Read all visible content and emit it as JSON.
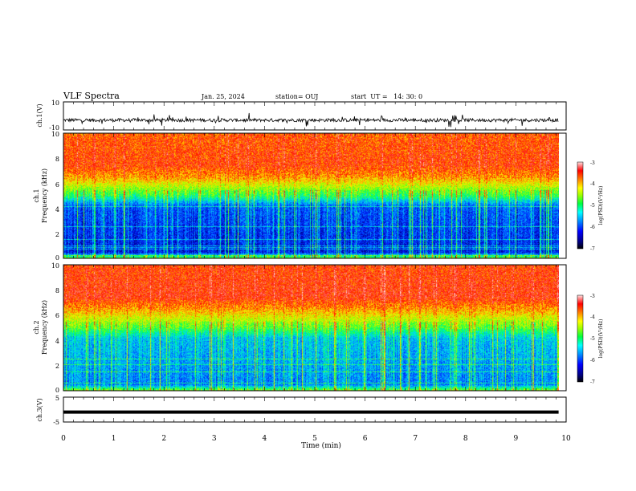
{
  "header": {
    "title": "VLF Spectra",
    "date": "Jan. 25, 2024",
    "station": "station= OUJ",
    "start_ut": "start  UT =   14: 30: 0"
  },
  "chart_data": [
    {
      "type": "line",
      "panel": "ch1-waveform",
      "ylabel": "ch.1(V)",
      "ylim": [
        -10,
        10
      ],
      "ytick_labels": [
        "10",
        "-10"
      ],
      "xlim": [
        0,
        10
      ],
      "series": [
        {
          "values_description_level": -3,
          "noise_amplitude": 4
        }
      ]
    },
    {
      "type": "heatmap",
      "panel": "ch1-spectrogram",
      "ylabel_line1": "ch.1",
      "ylabel_line2": "Frequency (kHz)",
      "ylim": [
        0,
        10
      ],
      "yticks": [
        0,
        2,
        4,
        6,
        8,
        10
      ],
      "ytick_labels": [
        "0",
        "2",
        "4",
        "6",
        "8",
        "10"
      ],
      "xlim": [
        0,
        10
      ],
      "colorbar": {
        "label": "log(PSD)(V²/Hz)",
        "range": [
          -7,
          -3
        ],
        "ticks": [
          "-3",
          "-4",
          "-5",
          "-6",
          "-7"
        ]
      },
      "colormap": [
        "#000080",
        "#0000ff",
        "#0080ff",
        "#00c0ff",
        "#00ffc0",
        "#00ff40",
        "#80ff00",
        "#ffff00",
        "#ff8000",
        "#ff0000",
        "#ff8080",
        "#ffffff"
      ],
      "data_end_min": 9.85,
      "profile_kHz": [
        0,
        0.5,
        4.2,
        5.0,
        6.5,
        7.5,
        10
      ],
      "profile_log_psd": [
        -4.5,
        -6.3,
        -6.0,
        -5.0,
        -4.0,
        -3.7,
        -3.8
      ]
    },
    {
      "type": "heatmap",
      "panel": "ch2-spectrogram",
      "ylabel_line1": "ch.2",
      "ylabel_line2": "Frequency (kHz)",
      "ylim": [
        0,
        10
      ],
      "yticks": [
        0,
        2,
        4,
        6,
        8,
        10
      ],
      "ytick_labels": [
        "0",
        "2",
        "4",
        "6",
        "8",
        "10"
      ],
      "xlim": [
        0,
        10
      ],
      "colorbar": {
        "label": "log(PSD)(V²/Hz)",
        "range": [
          -7,
          -3
        ],
        "ticks": [
          "-3",
          "-4",
          "-5",
          "-6",
          "-7"
        ]
      },
      "data_end_min": 9.85,
      "profile_kHz": [
        0,
        0.5,
        4.2,
        5.0,
        6.5,
        7.5,
        10
      ],
      "profile_log_psd": [
        -4.5,
        -5.8,
        -5.5,
        -4.8,
        -4.0,
        -3.6,
        -3.7
      ]
    },
    {
      "type": "line",
      "panel": "ch3-waveform",
      "ylabel": "ch.3(V)",
      "ylim": [
        -5,
        5
      ],
      "ytick_labels": [
        "5",
        "-5"
      ],
      "xlim": [
        0,
        10
      ],
      "series": [
        {
          "constant_value": -1
        }
      ]
    }
  ],
  "xaxis": {
    "label": "Time (min)",
    "ticks": [
      0,
      1,
      2,
      3,
      4,
      5,
      6,
      7,
      8,
      9,
      10
    ],
    "tick_labels": [
      "0",
      "1",
      "2",
      "3",
      "4",
      "5",
      "6",
      "7",
      "8",
      "9",
      "10"
    ]
  },
  "colors": {
    "ink": "#000000",
    "background": "#ffffff"
  }
}
